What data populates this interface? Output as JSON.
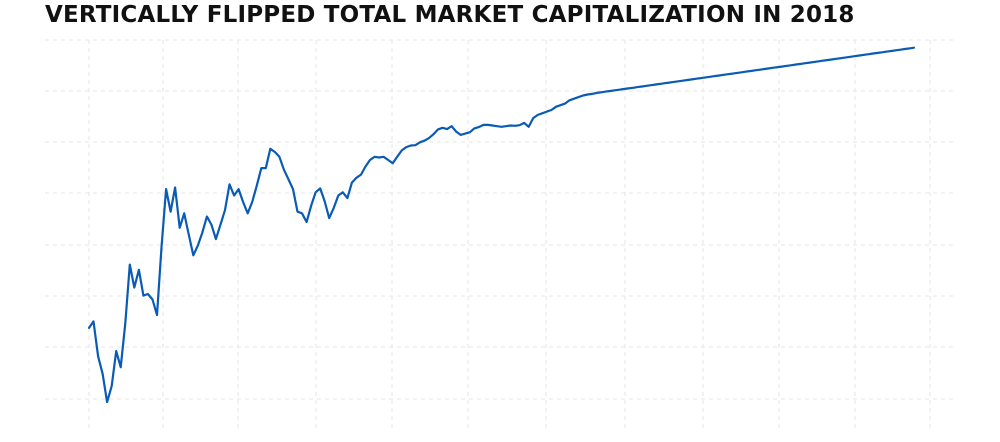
{
  "chart_data": {
    "type": "line",
    "title": "VERTICALLY FLIPPED TOTAL MARKET CAPITALIZATION IN 2018",
    "xlabel": "",
    "ylabel": "",
    "grid": true,
    "y_axis_inverted": true,
    "line_color": "#0a5bb5",
    "x": [
      0,
      2,
      4,
      6,
      8,
      10,
      12,
      14,
      16,
      18,
      20,
      22,
      24,
      26,
      28,
      30,
      32,
      34,
      36,
      38,
      40,
      42,
      44,
      46,
      48,
      50,
      52,
      54,
      56,
      58,
      60,
      62,
      64,
      66,
      68,
      70,
      72,
      74,
      76,
      78,
      80,
      82,
      84,
      86,
      88,
      90,
      92,
      94,
      96,
      98,
      100,
      102,
      104,
      106,
      108,
      110,
      112,
      114,
      116,
      118,
      120,
      122,
      124,
      126,
      128,
      130,
      132,
      134,
      136,
      138,
      140,
      142,
      144,
      146,
      148,
      150,
      152,
      154,
      156,
      158,
      160,
      162,
      164,
      166,
      168,
      170,
      172,
      174,
      176,
      178,
      180,
      182,
      184,
      186,
      188,
      190,
      192,
      194,
      196,
      198,
      200,
      202,
      204,
      206,
      208,
      210,
      212,
      214,
      216,
      218,
      220,
      222,
      224,
      226,
      228,
      230,
      232,
      234,
      236,
      238,
      240,
      242,
      244,
      246,
      248,
      250,
      252,
      254,
      256,
      258,
      260,
      262,
      264,
      266,
      268,
      270,
      272,
      274,
      276,
      278,
      280,
      282,
      284,
      286,
      288,
      290,
      292,
      294,
      296,
      298,
      300,
      302,
      304,
      306,
      308,
      310,
      312,
      314,
      316,
      318,
      320,
      322,
      324,
      326,
      328,
      330,
      332,
      334,
      336,
      338,
      340,
      342,
      344,
      346,
      348,
      350,
      352,
      354,
      356,
      358,
      360,
      362,
      364
    ],
    "y": [
      0.27,
      0.29,
      0.182,
      0.128,
      0.04,
      0.09,
      0.198,
      0.148,
      0.284,
      0.466,
      0.395,
      0.45,
      0.37,
      0.375,
      0.358,
      0.31,
      0.52,
      0.7,
      0.63,
      0.705,
      0.58,
      0.625,
      0.56,
      0.495,
      0.525,
      0.565,
      0.615,
      0.59,
      0.545,
      0.59,
      0.635,
      0.715,
      0.68,
      0.7,
      0.66,
      0.625,
      0.66,
      0.71,
      0.765,
      0.765,
      0.825,
      0.815,
      0.8,
      0.76,
      0.73,
      0.7,
      0.63,
      0.625,
      0.598,
      0.648,
      0.69,
      0.702,
      0.662,
      0.61,
      0.642,
      0.68,
      0.69,
      0.672,
      0.72,
      0.735,
      0.745,
      0.77,
      0.79,
      0.8,
      0.798,
      0.8,
      0.79,
      0.78,
      0.8,
      0.82,
      0.83,
      0.835,
      0.836,
      0.845,
      0.85,
      0.858,
      0.87,
      0.885,
      0.89,
      0.886,
      0.895,
      0.878,
      0.868,
      0.872,
      0.876,
      0.888,
      0.892,
      0.899,
      0.899,
      0.897,
      0.895,
      0.893,
      0.895,
      0.897,
      0.896,
      0.898,
      0.905,
      0.893,
      0.92,
      0.93,
      0.935,
      0.94,
      0.945,
      0.955,
      0.96,
      0.965,
      0.975,
      0.98,
      0.985,
      0.99,
      0.993,
      0.995,
      0.998,
      1.0,
      1.002,
      1.004,
      1.006,
      1.008,
      1.01,
      1.012,
      1.014,
      1.016,
      1.018,
      1.02,
      1.022,
      1.024,
      1.026,
      1.028,
      1.03,
      1.032,
      1.034,
      1.036,
      1.038,
      1.04,
      1.042,
      1.044,
      1.046,
      1.048,
      1.05,
      1.052,
      1.054,
      1.056,
      1.058,
      1.06,
      1.062,
      1.064,
      1.066,
      1.068,
      1.07,
      1.072,
      1.074,
      1.076,
      1.078,
      1.08,
      1.082,
      1.084,
      1.086,
      1.088,
      1.09,
      1.092,
      1.094,
      1.096,
      1.098,
      1.1,
      1.102,
      1.104,
      1.106,
      1.108,
      1.11,
      1.112,
      1.114,
      1.116,
      1.118,
      1.12,
      1.122,
      1.124,
      1.126,
      1.128,
      1.13,
      1.132,
      1.134,
      1.136,
      1.138
    ],
    "xlim": [
      0,
      364
    ],
    "ylim": [
      0,
      1.1
    ]
  }
}
